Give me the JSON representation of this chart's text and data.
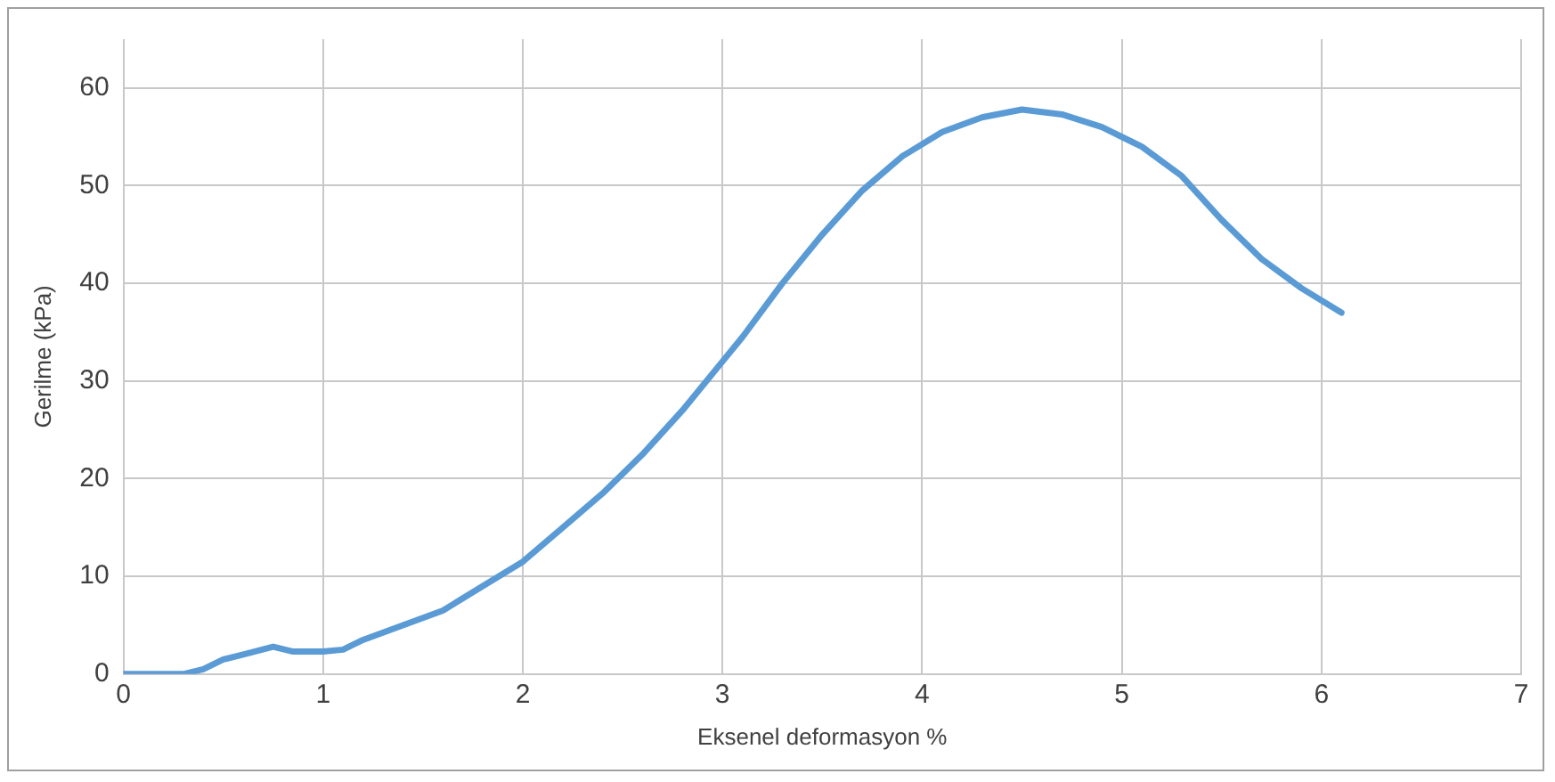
{
  "chart_data": {
    "type": "line",
    "xlabel": "Eksenel deformasyon %",
    "ylabel": "Gerilme (kPa)",
    "xlim": [
      0,
      7
    ],
    "xticks": [
      0,
      1,
      2,
      3,
      4,
      5,
      6,
      7
    ],
    "ylim": [
      0,
      65
    ],
    "yticks": [
      0,
      10,
      20,
      30,
      40,
      50,
      60
    ],
    "grid": true,
    "legend": false,
    "marker": "none",
    "line_style": "solid",
    "series": [
      {
        "color": "#5b9bd5",
        "x": [
          0,
          0.3,
          0.4,
          0.5,
          0.6,
          0.75,
          0.85,
          1.0,
          1.1,
          1.2,
          1.4,
          1.6,
          1.8,
          2.0,
          2.2,
          2.4,
          2.6,
          2.8,
          3.0,
          3.1,
          3.3,
          3.5,
          3.7,
          3.9,
          4.1,
          4.3,
          4.5,
          4.7,
          4.9,
          5.1,
          5.3,
          5.5,
          5.7,
          5.9,
          6.1
        ],
        "values": [
          0,
          0,
          0.5,
          1.5,
          2,
          2.8,
          2.3,
          2.3,
          2.5,
          3.5,
          5,
          6.5,
          9,
          11.5,
          15,
          18.5,
          22.5,
          27,
          32,
          34.5,
          40,
          45,
          49.5,
          53,
          55.5,
          57,
          57.8,
          57.3,
          56,
          54,
          51,
          46.5,
          42.5,
          39.5,
          37
        ]
      }
    ]
  }
}
